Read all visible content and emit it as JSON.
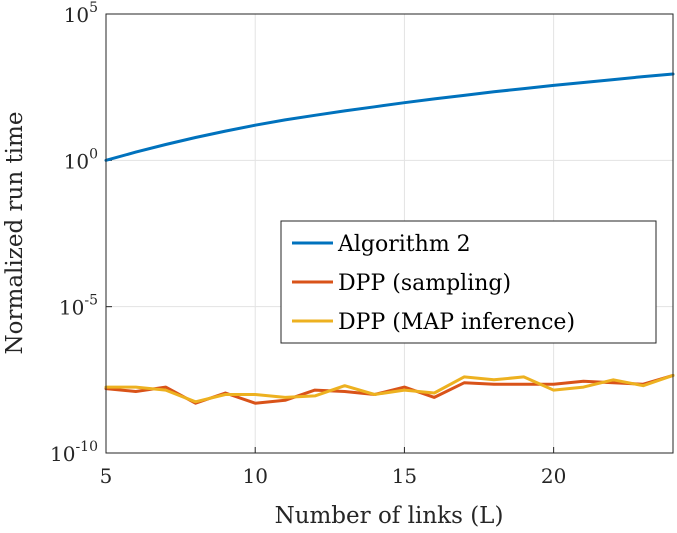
{
  "chart_data": {
    "type": "line",
    "xlabel": "Number of links (L)",
    "ylabel": "Normalized run time",
    "xlim": [
      5,
      24
    ],
    "ylim_log10": [
      -10,
      5
    ],
    "y_scale": "log",
    "grid": true,
    "legend_position": "center-right",
    "x_ticks": [
      5,
      10,
      15,
      20
    ],
    "y_ticks": [
      {
        "base": "10",
        "exp": "-10",
        "log10": -10
      },
      {
        "base": "10",
        "exp": "-5",
        "log10": -5
      },
      {
        "base": "10",
        "exp": "0",
        "log10": 0
      },
      {
        "base": "10",
        "exp": "5",
        "log10": 5
      }
    ],
    "x": [
      5,
      6,
      7,
      8,
      9,
      10,
      11,
      12,
      13,
      14,
      15,
      16,
      17,
      18,
      19,
      20,
      21,
      22,
      23,
      24
    ],
    "series": [
      {
        "name": "Algorithm 2",
        "color": "#0072BD",
        "log10_values": [
          0.0,
          0.28,
          0.54,
          0.78,
          1.0,
          1.2,
          1.38,
          1.54,
          1.69,
          1.83,
          1.97,
          2.1,
          2.22,
          2.34,
          2.45,
          2.56,
          2.66,
          2.76,
          2.86,
          2.95
        ]
      },
      {
        "name": "DPP (sampling)",
        "color": "#D95319",
        "log10_values": [
          -7.8,
          -7.9,
          -7.75,
          -8.3,
          -7.95,
          -8.3,
          -8.2,
          -7.85,
          -7.9,
          -8.0,
          -7.75,
          -8.1,
          -7.6,
          -7.65,
          -7.65,
          -7.65,
          -7.55,
          -7.6,
          -7.65,
          -7.35
        ]
      },
      {
        "name": "DPP (MAP inference)",
        "color": "#EDB120",
        "log10_values": [
          -7.75,
          -7.75,
          -7.85,
          -8.25,
          -8.0,
          -8.0,
          -8.1,
          -8.05,
          -7.7,
          -8.0,
          -7.85,
          -7.95,
          -7.4,
          -7.5,
          -7.4,
          -7.85,
          -7.75,
          -7.5,
          -7.7,
          -7.35
        ]
      }
    ]
  }
}
